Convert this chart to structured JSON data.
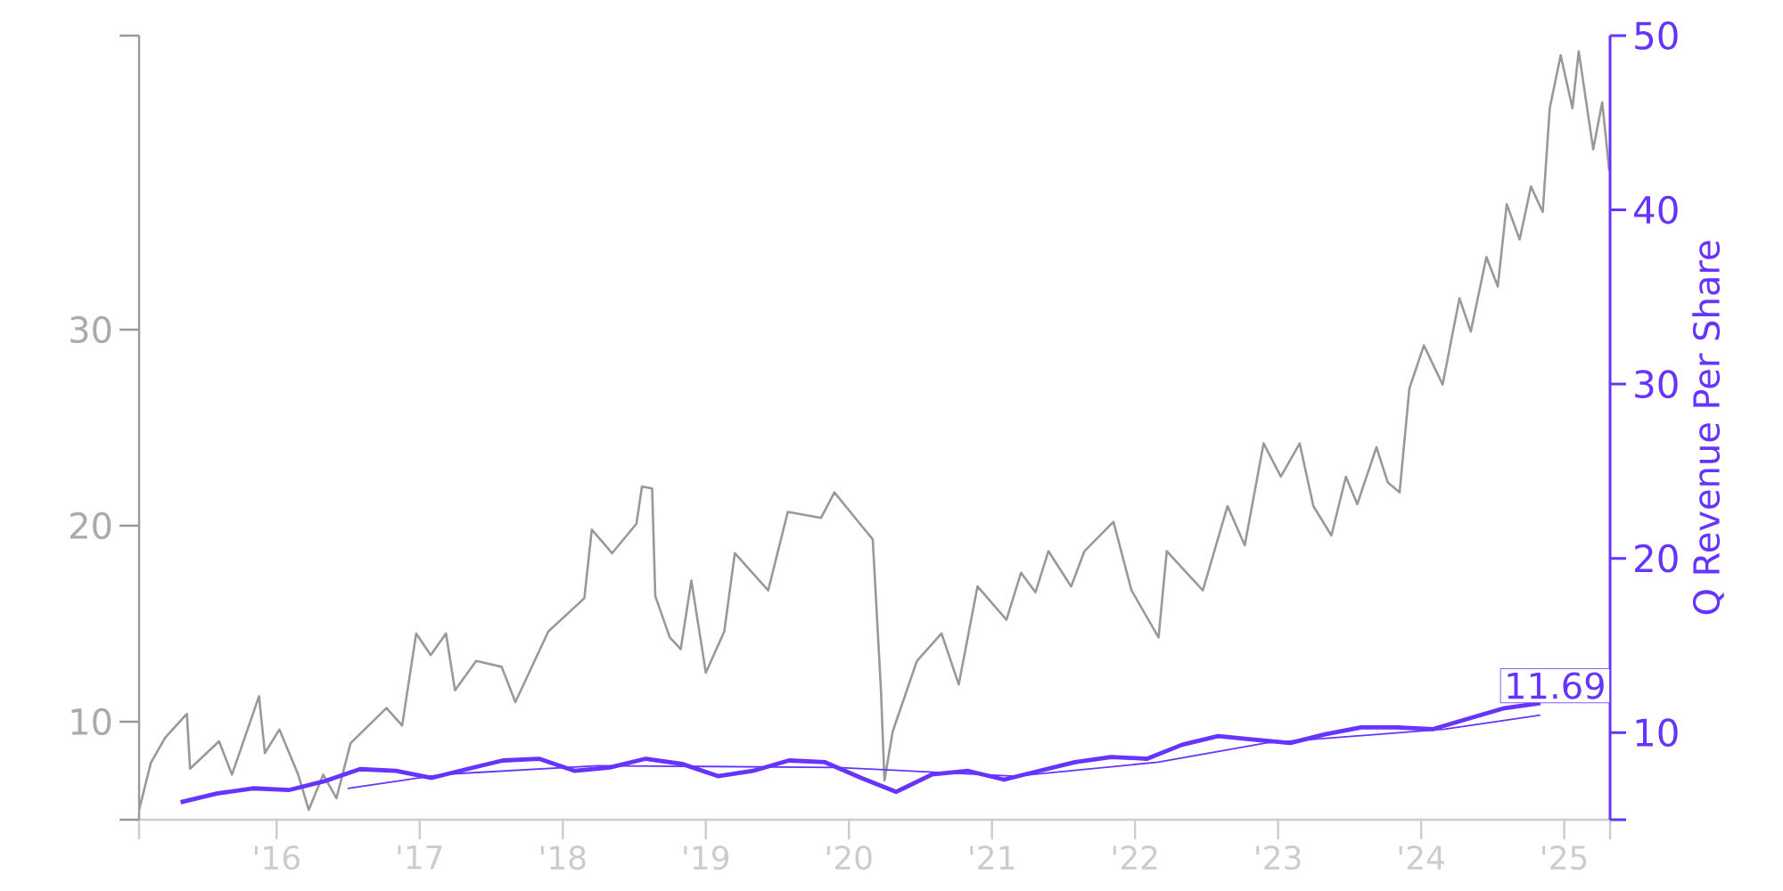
{
  "chart_data": {
    "type": "line",
    "xlim": [
      "2015-01-15",
      "2025-04-28"
    ],
    "xticks": [
      {
        "value": "2015-01-15",
        "label": null
      },
      {
        "value": "2016-01-01",
        "label": "'16"
      },
      {
        "value": "2017-01-01",
        "label": "'17"
      },
      {
        "value": "2018-01-01",
        "label": "'18"
      },
      {
        "value": "2019-01-01",
        "label": "'19"
      },
      {
        "value": "2020-01-01",
        "label": "'20"
      },
      {
        "value": "2021-01-01",
        "label": "'21"
      },
      {
        "value": "2022-01-01",
        "label": "'22"
      },
      {
        "value": "2023-01-01",
        "label": "'23"
      },
      {
        "value": "2024-01-01",
        "label": "'24"
      },
      {
        "value": "2025-01-01",
        "label": "'25"
      },
      {
        "value": "2025-04-28",
        "label": null
      }
    ],
    "ylim": [
      5,
      45
    ],
    "yticks": [
      {
        "value": 5,
        "label": null
      },
      10,
      20,
      30,
      {
        "value": 45,
        "label": null
      }
    ],
    "y2lim": [
      5,
      50
    ],
    "y2ticks": [
      {
        "value": 5,
        "label": null
      },
      10,
      20,
      30,
      40,
      50
    ],
    "y2label": "Q Revenue Per Share",
    "series": [
      {
        "color": "#999999",
        "x": [
          "2015-01-15",
          "2015-02-14",
          "2015-03-23",
          "2015-05-17",
          "2015-05-25",
          "2015-08-07",
          "2015-09-09",
          "2015-11-17",
          "2015-12-02",
          "2016-01-08",
          "2016-02-25",
          "2016-03-23",
          "2016-04-29",
          "2016-06-02",
          "2016-07-08",
          "2016-10-08",
          "2016-11-17",
          "2016-12-23",
          "2017-01-29",
          "2017-03-09",
          "2017-04-01",
          "2017-05-25",
          "2017-07-29",
          "2017-09-02",
          "2017-11-25",
          "2018-02-25",
          "2018-03-16",
          "2018-05-07",
          "2018-07-08",
          "2018-07-22",
          "2018-08-17",
          "2018-08-25",
          "2018-10-01",
          "2018-10-29",
          "2018-11-25",
          "2019-01-01",
          "2019-02-17",
          "2019-03-16",
          "2019-06-09",
          "2019-07-29",
          "2019-10-22",
          "2019-11-25",
          "2020-01-29",
          "2020-03-02",
          "2020-03-23",
          "2020-04-01",
          "2020-04-22",
          "2020-06-23",
          "2020-08-25",
          "2020-10-08",
          "2020-11-25",
          "2021-02-07",
          "2021-03-16",
          "2021-04-22",
          "2021-05-25",
          "2021-07-22",
          "2021-08-25",
          "2021-11-07",
          "2021-12-23",
          "2022-03-02",
          "2022-03-23",
          "2022-06-23",
          "2022-08-25",
          "2022-10-08",
          "2022-11-25",
          "2023-01-08",
          "2023-02-25",
          "2023-04-01",
          "2023-05-17",
          "2023-06-23",
          "2023-07-22",
          "2023-09-09",
          "2023-10-08",
          "2023-11-07",
          "2023-12-02",
          "2024-01-08",
          "2024-02-25",
          "2024-04-08",
          "2024-05-07",
          "2024-06-16",
          "2024-07-15",
          "2024-08-07",
          "2024-09-09",
          "2024-10-08",
          "2024-11-07",
          "2024-11-25",
          "2024-12-23",
          "2025-01-22",
          "2025-02-07",
          "2025-03-16",
          "2025-04-08",
          "2025-04-26"
        ],
        "values": [
          5.5,
          7.9,
          9.2,
          10.4,
          7.6,
          9.0,
          7.3,
          11.3,
          8.4,
          9.6,
          7.3,
          5.5,
          7.3,
          6.1,
          8.9,
          10.7,
          9.8,
          14.5,
          13.4,
          14.5,
          11.6,
          13.1,
          12.8,
          11.0,
          14.6,
          16.3,
          19.8,
          18.6,
          20.1,
          22.0,
          21.9,
          16.4,
          14.3,
          13.7,
          17.2,
          12.5,
          14.6,
          18.6,
          16.7,
          20.7,
          20.4,
          21.7,
          20.1,
          19.3,
          11.6,
          7.0,
          9.5,
          13.1,
          14.5,
          11.9,
          16.9,
          15.2,
          17.6,
          16.6,
          18.7,
          16.9,
          18.7,
          20.2,
          16.7,
          14.3,
          18.7,
          16.7,
          21.0,
          19.0,
          24.2,
          22.5,
          24.2,
          21.0,
          19.5,
          22.5,
          21.1,
          24.0,
          22.2,
          21.7,
          27.0,
          29.2,
          27.2,
          31.6,
          29.9,
          33.7,
          32.2,
          36.4,
          34.6,
          37.3,
          36.0,
          41.3,
          44.0,
          41.3,
          44.2,
          39.2,
          41.6,
          38.1
        ]
      },
      {
        "color": "#6633ff",
        "axis": "y2",
        "x": [
          "2015-05",
          "2015-08",
          "2015-11",
          "2016-02",
          "2016-05",
          "2016-08",
          "2016-11",
          "2017-02",
          "2017-05",
          "2017-08",
          "2017-11",
          "2018-02",
          "2018-05",
          "2018-08",
          "2018-11",
          "2019-02",
          "2019-05",
          "2019-08",
          "2019-11",
          "2020-02",
          "2020-05",
          "2020-08",
          "2020-11",
          "2021-02",
          "2021-05",
          "2021-08",
          "2021-11",
          "2022-02",
          "2022-05",
          "2022-08",
          "2022-11",
          "2023-02",
          "2023-05",
          "2023-08",
          "2023-11",
          "2024-02",
          "2024-05",
          "2024-08",
          "2024-11"
        ],
        "values": [
          6.0,
          6.5,
          6.8,
          6.7,
          7.2,
          7.9,
          7.8,
          7.4,
          7.9,
          8.4,
          8.5,
          7.8,
          8.0,
          8.5,
          8.2,
          7.5,
          7.8,
          8.4,
          8.3,
          7.4,
          6.6,
          7.6,
          7.8,
          7.3,
          7.8,
          8.3,
          8.6,
          8.5,
          9.3,
          9.8,
          9.6,
          9.4,
          9.9,
          10.3,
          10.3,
          10.2,
          10.8,
          11.4,
          11.69
        ],
        "value_labels": [
          null,
          null,
          null,
          null,
          null,
          null,
          null,
          null,
          null,
          null,
          null,
          null,
          null,
          null,
          null,
          null,
          null,
          null,
          null,
          null,
          null,
          null,
          null,
          null,
          null,
          null,
          null,
          null,
          null,
          null,
          null,
          null,
          null,
          null,
          null,
          null,
          null,
          null,
          "11.69"
        ]
      },
      {
        "color": "#6633ff",
        "axis": "y2",
        "x": [
          "2016-07",
          "2017-03",
          "2018-04",
          "2019-12",
          "2021-03",
          "2022-03",
          "2022-12",
          "2024-03",
          "2024-11"
        ],
        "values": [
          6.8,
          7.6,
          8.1,
          8.0,
          7.5,
          8.3,
          9.4,
          10.2,
          11.0
        ]
      }
    ]
  }
}
